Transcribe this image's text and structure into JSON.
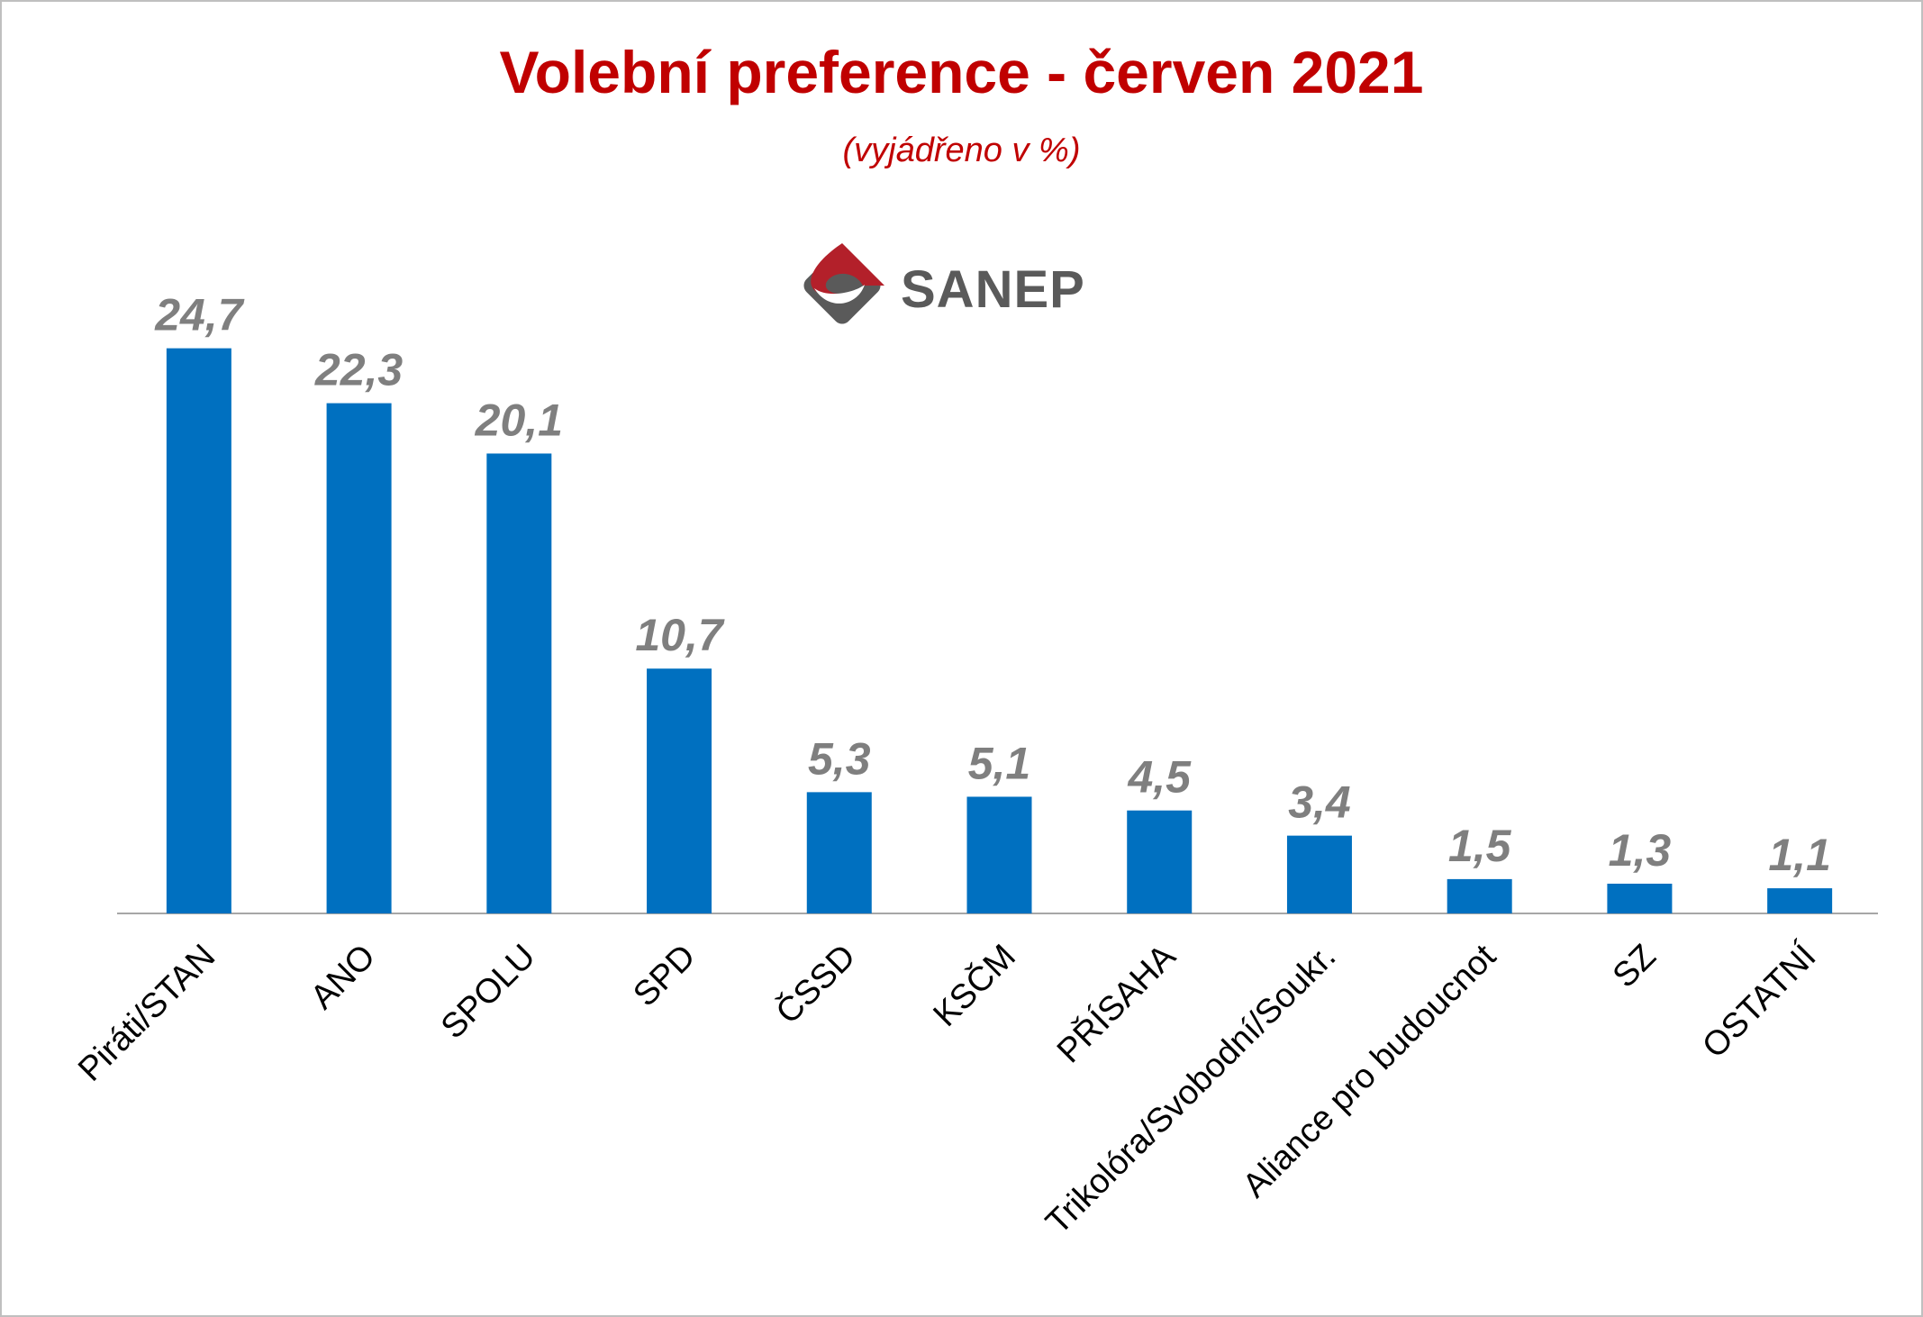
{
  "header": {
    "title": "Volební preference - červen 2021",
    "subtitle": "(vyjádřeno v %)"
  },
  "logo": {
    "text": "SANEP",
    "colors": {
      "red": "#b3202a",
      "gray": "#5a5a5a"
    }
  },
  "colors": {
    "bar": "#0070c0",
    "title": "#c00000",
    "value_label": "#7f7f7f",
    "axis": "#a6a6a6"
  },
  "chart_data": {
    "type": "bar",
    "title": "Volební preference - červen 2021",
    "subtitle": "(vyjádřeno v %)",
    "categories": [
      "Piráti/STAN",
      "ANO",
      "SPOLU",
      "SPD",
      "ČSSD",
      "KSČM",
      "PŘÍSAHA",
      "Trikolóra/Svobodní/Soukr.",
      "Aliance pro budoucnot",
      "SZ",
      "OSTATNÍ"
    ],
    "values": [
      24.7,
      22.3,
      20.1,
      10.7,
      5.3,
      5.1,
      4.5,
      3.4,
      1.5,
      1.3,
      1.1
    ],
    "value_labels": [
      "24,7",
      "22,3",
      "20,1",
      "10,7",
      "5,3",
      "5,1",
      "4,5",
      "3,4",
      "1,5",
      "1,3",
      "1,1"
    ],
    "xlabel": "",
    "ylabel": "",
    "ylim": [
      0,
      25
    ],
    "grid": false,
    "legend": "none"
  }
}
